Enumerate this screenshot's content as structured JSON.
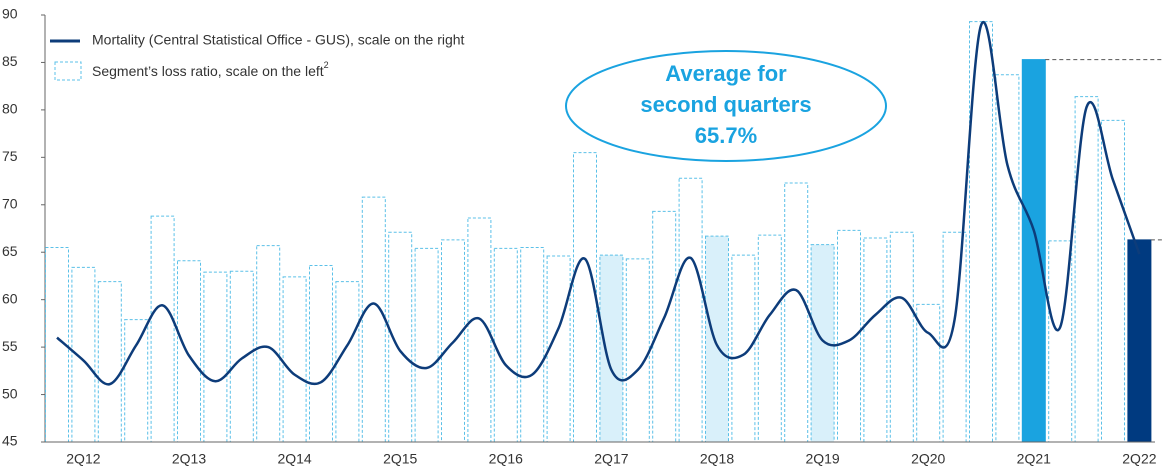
{
  "chart_data": {
    "type": "bar",
    "categories": [
      null,
      "2Q12",
      null,
      null,
      null,
      "2Q13",
      null,
      null,
      null,
      "2Q14",
      null,
      null,
      null,
      "2Q15",
      null,
      null,
      null,
      "2Q16",
      null,
      null,
      null,
      "2Q17",
      null,
      null,
      null,
      "2Q18",
      null,
      null,
      null,
      "2Q19",
      null,
      null,
      null,
      "2Q20",
      null,
      null,
      null,
      "2Q21",
      null,
      null,
      null,
      "2Q22"
    ],
    "series": [
      {
        "name": "Segment’s loss ratio, scale on the left",
        "name_note": "2",
        "type": "bar",
        "color": "#5bc0e8",
        "values": [
          65.5,
          63.4,
          61.9,
          57.9,
          68.8,
          64.1,
          62.9,
          63.0,
          65.7,
          62.4,
          63.6,
          61.9,
          70.8,
          67.1,
          65.4,
          66.3,
          68.6,
          65.4,
          65.5,
          64.6,
          75.5,
          64.7,
          64.3,
          69.3,
          72.8,
          66.7,
          64.7,
          66.8,
          72.3,
          65.8,
          67.3,
          66.5,
          67.1,
          59.5,
          67.1,
          89.3,
          83.7,
          85.3,
          66.2,
          81.4,
          78.9,
          66.3
        ],
        "colors": [
          "#ffffff",
          "#ffffff",
          "#ffffff",
          "#ffffff",
          "#ffffff",
          "#ffffff",
          "#ffffff",
          "#ffffff",
          "#ffffff",
          "#ffffff",
          "#ffffff",
          "#ffffff",
          "#ffffff",
          "#ffffff",
          "#ffffff",
          "#ffffff",
          "#ffffff",
          "#ffffff",
          "#ffffff",
          "#ffffff",
          "#ffffff",
          "#d9f0fa",
          "#ffffff",
          "#ffffff",
          "#ffffff",
          "#d9f0fa",
          "#ffffff",
          "#ffffff",
          "#ffffff",
          "#d9f0fa",
          "#ffffff",
          "#ffffff",
          "#ffffff",
          "#ffffff",
          "#ffffff",
          "#ffffff",
          "#ffffff",
          "#1aa3e0",
          "#ffffff",
          "#ffffff",
          "#ffffff",
          "#003a80"
        ]
      },
      {
        "name": "Mortality (Central Statistical Office - GUS), scale on the right",
        "type": "line",
        "color": "#0d3c7a",
        "values": [
          56.0,
          53.6,
          51.1,
          55.2,
          59.4,
          54.1,
          51.4,
          53.8,
          55.0,
          52.1,
          51.3,
          55.2,
          59.6,
          54.6,
          52.8,
          55.5,
          58.0,
          53.1,
          52.1,
          57.0,
          64.3,
          52.6,
          52.6,
          58.1,
          64.4,
          55.2,
          54.2,
          58.4,
          61.0,
          55.7,
          55.7,
          58.4,
          60.2,
          56.5,
          57.9,
          88.9,
          74.2,
          67.3,
          57.1,
          80.3,
          72.6,
          64.8
        ]
      }
    ],
    "annotation": [
      "Average for",
      "second quarters",
      "65.7%"
    ],
    "ylim": [
      45,
      90
    ],
    "yticks": [
      45,
      50,
      55,
      60,
      65,
      70,
      75,
      80,
      85,
      90
    ]
  }
}
